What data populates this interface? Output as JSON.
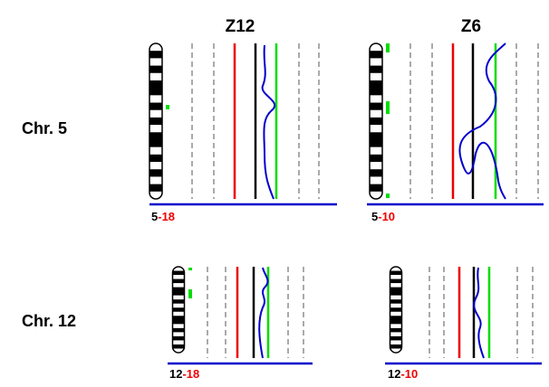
{
  "columns": [
    "Z12",
    "Z6"
  ],
  "rows": [
    "Chr. 5",
    "Chr. 12"
  ],
  "panels": [
    {
      "chromosome": "5",
      "sample": "-18"
    },
    {
      "chromosome": "5",
      "sample": "-10"
    },
    {
      "chromosome": "12",
      "sample": "-18"
    },
    {
      "chromosome": "12",
      "sample": "-10"
    }
  ]
}
